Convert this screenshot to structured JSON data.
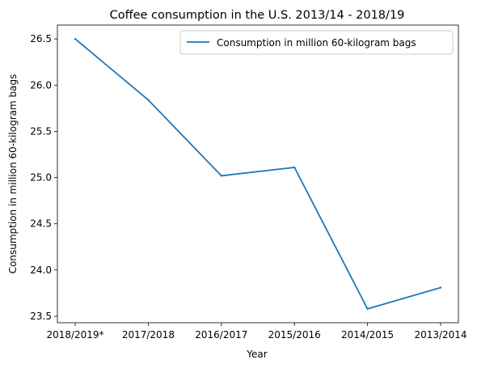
{
  "chart_data": {
    "type": "line",
    "title": "Coffee consumption in the U.S. 2013/14 - 2018/19",
    "xlabel": "Year",
    "ylabel": "Consumption in million 60-kilogram bags",
    "categories": [
      "2018/2019*",
      "2017/2018",
      "2016/2017",
      "2015/2016",
      "2014/2015",
      "2013/2014"
    ],
    "series": [
      {
        "name": "Consumption in million 60-kilogram bags",
        "color": "#1f77b4",
        "values": [
          26.5,
          25.84,
          25.02,
          25.11,
          23.58,
          23.81
        ]
      }
    ],
    "ylim": [
      23.43,
      26.65
    ],
    "yticks": [
      "23.5",
      "24.0",
      "24.5",
      "25.0",
      "25.5",
      "26.0",
      "26.5"
    ],
    "legend": "top-right",
    "grid": false
  }
}
